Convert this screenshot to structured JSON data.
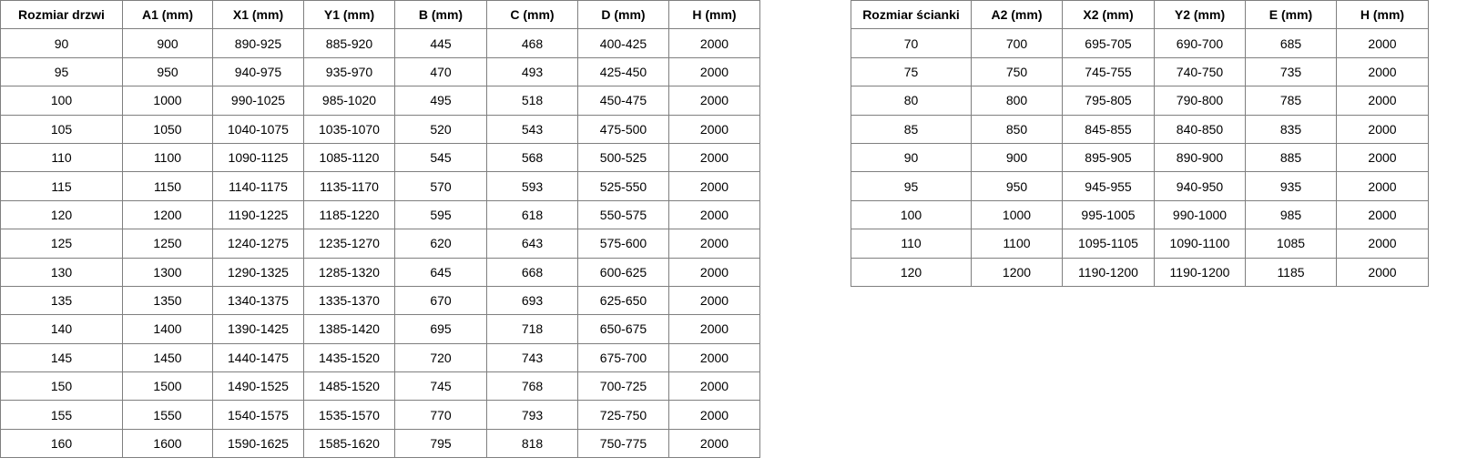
{
  "door_table": {
    "headers": [
      "Rozmiar drzwi",
      "A1 (mm)",
      "X1 (mm)",
      "Y1 (mm)",
      "B (mm)",
      "C (mm)",
      "D (mm)",
      "H (mm)"
    ],
    "rows": [
      [
        "90",
        "900",
        "890-925",
        "885-920",
        "445",
        "468",
        "400-425",
        "2000"
      ],
      [
        "95",
        "950",
        "940-975",
        "935-970",
        "470",
        "493",
        "425-450",
        "2000"
      ],
      [
        "100",
        "1000",
        "990-1025",
        "985-1020",
        "495",
        "518",
        "450-475",
        "2000"
      ],
      [
        "105",
        "1050",
        "1040-1075",
        "1035-1070",
        "520",
        "543",
        "475-500",
        "2000"
      ],
      [
        "110",
        "1100",
        "1090-1125",
        "1085-1120",
        "545",
        "568",
        "500-525",
        "2000"
      ],
      [
        "115",
        "1150",
        "1140-1175",
        "1135-1170",
        "570",
        "593",
        "525-550",
        "2000"
      ],
      [
        "120",
        "1200",
        "1190-1225",
        "1185-1220",
        "595",
        "618",
        "550-575",
        "2000"
      ],
      [
        "125",
        "1250",
        "1240-1275",
        "1235-1270",
        "620",
        "643",
        "575-600",
        "2000"
      ],
      [
        "130",
        "1300",
        "1290-1325",
        "1285-1320",
        "645",
        "668",
        "600-625",
        "2000"
      ],
      [
        "135",
        "1350",
        "1340-1375",
        "1335-1370",
        "670",
        "693",
        "625-650",
        "2000"
      ],
      [
        "140",
        "1400",
        "1390-1425",
        "1385-1420",
        "695",
        "718",
        "650-675",
        "2000"
      ],
      [
        "145",
        "1450",
        "1440-1475",
        "1435-1520",
        "720",
        "743",
        "675-700",
        "2000"
      ],
      [
        "150",
        "1500",
        "1490-1525",
        "1485-1520",
        "745",
        "768",
        "700-725",
        "2000"
      ],
      [
        "155",
        "1550",
        "1540-1575",
        "1535-1570",
        "770",
        "793",
        "725-750",
        "2000"
      ],
      [
        "160",
        "1600",
        "1590-1625",
        "1585-1620",
        "795",
        "818",
        "750-775",
        "2000"
      ]
    ]
  },
  "wall_table": {
    "headers": [
      "Rozmiar ścianki",
      "A2 (mm)",
      "X2 (mm)",
      "Y2 (mm)",
      "E (mm)",
      "H (mm)"
    ],
    "rows": [
      [
        "70",
        "700",
        "695-705",
        "690-700",
        "685",
        "2000"
      ],
      [
        "75",
        "750",
        "745-755",
        "740-750",
        "735",
        "2000"
      ],
      [
        "80",
        "800",
        "795-805",
        "790-800",
        "785",
        "2000"
      ],
      [
        "85",
        "850",
        "845-855",
        "840-850",
        "835",
        "2000"
      ],
      [
        "90",
        "900",
        "895-905",
        "890-900",
        "885",
        "2000"
      ],
      [
        "95",
        "950",
        "945-955",
        "940-950",
        "935",
        "2000"
      ],
      [
        "100",
        "1000",
        "995-1005",
        "990-1000",
        "985",
        "2000"
      ],
      [
        "110",
        "1100",
        "1095-1105",
        "1090-1100",
        "1085",
        "2000"
      ],
      [
        "120",
        "1200",
        "1190-1200",
        "1190-1200",
        "1185",
        "2000"
      ]
    ]
  }
}
